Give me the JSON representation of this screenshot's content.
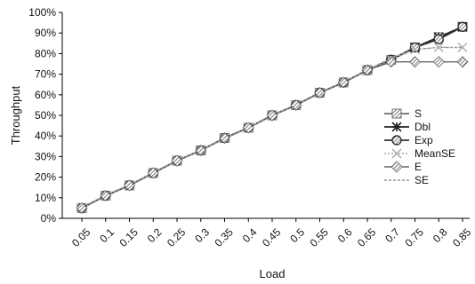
{
  "chart_data": {
    "type": "line",
    "title": "",
    "xlabel": "Load",
    "ylabel": "Throughput",
    "categories": [
      "0.05",
      "0.1",
      "0.15",
      "0.2",
      "0.25",
      "0.3",
      "0.35",
      "0.4",
      "0.45",
      "0.5",
      "0.55",
      "0.6",
      "0.65",
      "0.7",
      "0.75",
      "0.8",
      "0.85"
    ],
    "y_ticks": [
      "0%",
      "10%",
      "20%",
      "30%",
      "40%",
      "50%",
      "60%",
      "70%",
      "80%",
      "90%",
      "100%"
    ],
    "ylim": [
      0,
      100
    ],
    "grid": false,
    "legend_position": "right",
    "series": [
      {
        "name": "S",
        "color": "#555555",
        "marker": "square-hatched",
        "values": [
          5,
          11,
          16,
          22,
          28,
          33,
          39,
          44,
          50,
          55,
          61,
          66,
          72,
          77,
          83,
          88,
          93
        ]
      },
      {
        "name": "Dbl",
        "color": "#222222",
        "marker": "asterisk",
        "values": [
          5,
          11,
          16,
          22,
          28,
          33,
          39,
          44,
          50,
          55,
          61,
          66,
          72,
          77,
          83,
          88,
          93
        ]
      },
      {
        "name": "Exp",
        "color": "#333333",
        "marker": "circle",
        "values": [
          5,
          11,
          16,
          22,
          28,
          33,
          39,
          44,
          50,
          55,
          61,
          66,
          72,
          77,
          83,
          87,
          93
        ]
      },
      {
        "name": "MeanSE",
        "color": "#aaaaaa",
        "marker": "cross",
        "values": [
          5,
          11,
          16,
          22,
          28,
          33,
          39,
          44,
          50,
          55,
          61,
          66,
          72,
          77,
          82,
          83,
          83
        ]
      },
      {
        "name": "E",
        "color": "#666666",
        "marker": "diamond",
        "values": [
          5,
          11,
          16,
          22,
          28,
          33,
          39,
          44,
          50,
          55,
          61,
          66,
          72,
          76,
          76,
          76,
          76
        ]
      },
      {
        "name": "SE",
        "color": "#999999",
        "marker": "none",
        "values": [
          5,
          11,
          16,
          22,
          28,
          33,
          39,
          44,
          50,
          55,
          61,
          66,
          72,
          78,
          82,
          83,
          83
        ]
      }
    ]
  }
}
